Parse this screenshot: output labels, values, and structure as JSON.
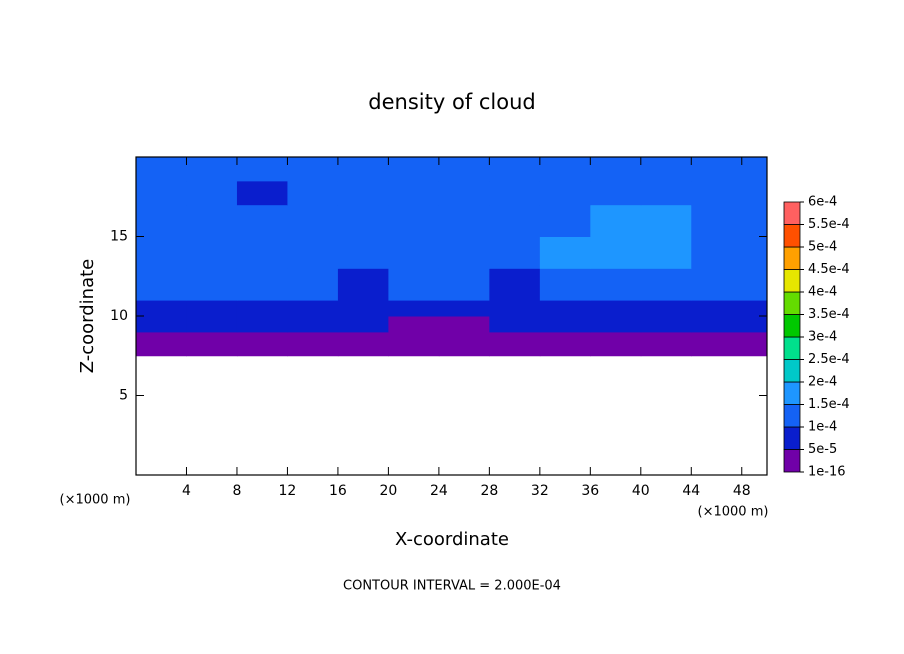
{
  "chart_data": {
    "type": "contour",
    "title": "density of cloud",
    "xlabel": "X-coordinate",
    "ylabel": "Z-coordinate",
    "xunit_left": "(×1000 m)",
    "xunit_right": "(×1000 m)",
    "footer": "CONTOUR INTERVAL = 2.000E-04",
    "xlim": [
      0,
      50
    ],
    "ylim": [
      0,
      20
    ],
    "xticks": [
      4,
      8,
      12,
      16,
      20,
      24,
      28,
      32,
      36,
      40,
      44,
      48
    ],
    "yticks": [
      5,
      10,
      15
    ],
    "x_edges": [
      0,
      4,
      8,
      12,
      16,
      20,
      24,
      28,
      32,
      36,
      40,
      44,
      50
    ],
    "y_edges": [
      7.5,
      9,
      10,
      11,
      13,
      15,
      17,
      18.5,
      20
    ],
    "z": [
      [
        3e-05,
        3e-05,
        3e-05,
        3e-05,
        3e-05,
        3e-05,
        3e-05,
        3e-05,
        3e-05,
        3e-05,
        3e-05,
        3e-05
      ],
      [
        7e-05,
        7e-05,
        7e-05,
        7e-05,
        7e-05,
        4e-05,
        4e-05,
        7e-05,
        7e-05,
        7e-05,
        7e-05,
        7e-05
      ],
      [
        9e-05,
        9e-05,
        9e-05,
        9e-05,
        9e-05,
        9e-05,
        9e-05,
        9e-05,
        9e-05,
        9e-05,
        9e-05,
        9e-05
      ],
      [
        0.00011,
        0.00011,
        0.00011,
        0.00011,
        9e-05,
        0.00011,
        0.00011,
        9e-05,
        0.00011,
        0.00011,
        0.00011,
        0.00011
      ],
      [
        0.00012,
        0.00013,
        0.00013,
        0.00012,
        0.00012,
        0.00012,
        0.00012,
        0.00012,
        0.00016,
        0.00016,
        0.00016,
        0.00012
      ],
      [
        0.00013,
        0.00013,
        0.00013,
        0.00013,
        0.00013,
        0.00013,
        0.00013,
        0.00013,
        0.00013,
        0.00016,
        0.00016,
        0.00013
      ],
      [
        0.00011,
        0.00011,
        9e-05,
        0.00011,
        0.00011,
        0.00011,
        0.00011,
        0.00011,
        0.00011,
        0.00011,
        0.00011,
        0.00011
      ],
      [
        0.00011,
        0.00011,
        0.00011,
        0.00011,
        0.00011,
        0.00011,
        0.00011,
        0.00011,
        0.00011,
        0.00011,
        0.00011,
        0.00011
      ]
    ],
    "colorbar": {
      "levels": [
        {
          "value": 1e-16,
          "label": "1e-16"
        },
        {
          "value": 5e-05,
          "label": "5e-5"
        },
        {
          "value": 0.0001,
          "label": "1e-4"
        },
        {
          "value": 0.00015,
          "label": "1.5e-4"
        },
        {
          "value": 0.0002,
          "label": "2e-4"
        },
        {
          "value": 0.00025,
          "label": "2.5e-4"
        },
        {
          "value": 0.0003,
          "label": "3e-4"
        },
        {
          "value": 0.00035,
          "label": "3.5e-4"
        },
        {
          "value": 0.0004,
          "label": "4e-4"
        },
        {
          "value": 0.00045,
          "label": "4.5e-4"
        },
        {
          "value": 0.0005,
          "label": "5e-4"
        },
        {
          "value": 0.00055,
          "label": "5.5e-4"
        },
        {
          "value": 0.0006,
          "label": "6e-4"
        }
      ],
      "colors": [
        "#7000a8",
        "#0a1ecd",
        "#1462f5",
        "#1e96ff",
        "#00c8c8",
        "#00e08c",
        "#00c800",
        "#64dc00",
        "#e6e600",
        "#ffa000",
        "#ff5000",
        "#ff6060"
      ]
    }
  }
}
